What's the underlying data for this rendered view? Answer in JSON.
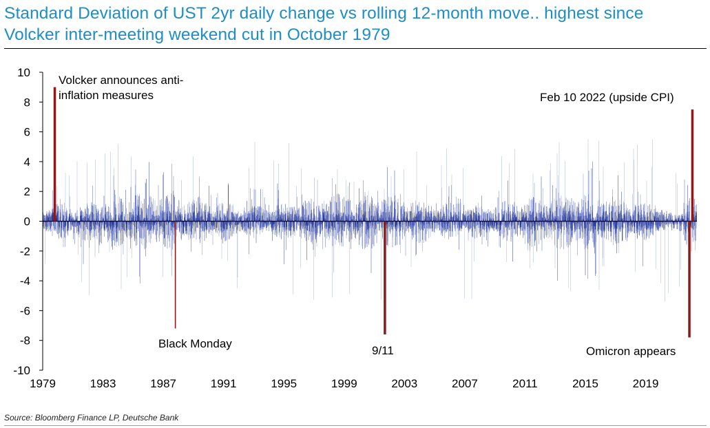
{
  "title": "Standard Deviation of UST 2yr daily change vs rolling 12-month move.. highest since Volcker inter-meeting weekend cut in October 1979",
  "source": "Source: Bloomberg Finance LP, Deutsche Bank",
  "colors": {
    "title": "#1f8dc6",
    "series": "#1a2f9e",
    "highlight": "#8b1a1a"
  },
  "chart_data": {
    "type": "bar",
    "ylim": [
      -10,
      10
    ],
    "yticks": [
      10,
      8,
      6,
      4,
      2,
      0,
      -2,
      -4,
      -6,
      -8,
      -10
    ],
    "xlim": [
      1979,
      2022.5
    ],
    "xticks": [
      1979,
      1983,
      1987,
      1991,
      1995,
      1999,
      2003,
      2007,
      2011,
      2015,
      2019
    ],
    "series": [
      {
        "name": "Std dev of UST 2yr daily change vs rolling 12-month move",
        "note": "dense daily values, roughly within ±2 with spikes to about ±6"
      }
    ],
    "highlights": [
      {
        "date": 1979.8,
        "value": 9.0,
        "label": "Volcker announces anti-inflation measures"
      },
      {
        "date": 1987.8,
        "value": -7.2,
        "label": "Black Monday"
      },
      {
        "date": 2001.7,
        "value": -7.6,
        "label": "9/11"
      },
      {
        "date": 2021.9,
        "value": -7.8,
        "label": "Omicron appears"
      },
      {
        "date": 2022.1,
        "value": 7.5,
        "label": "Feb 10 2022 (upside CPI)"
      }
    ]
  }
}
